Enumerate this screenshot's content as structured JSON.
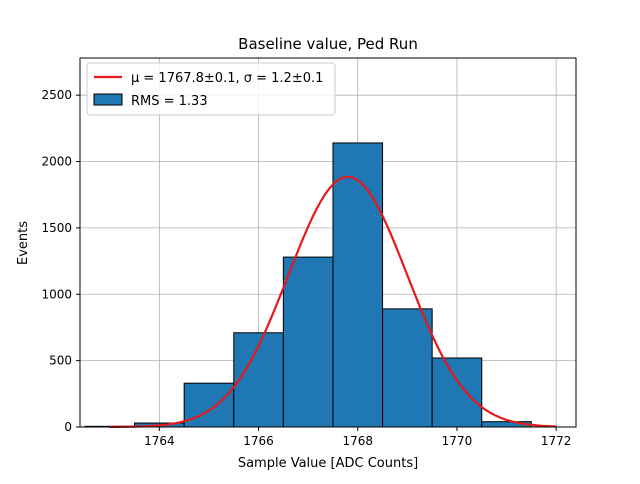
{
  "chart_data": {
    "type": "bar",
    "title": "Baseline value, Ped Run",
    "xlabel": "Sample Value [ADC Counts]",
    "ylabel": "Events",
    "xlim": [
      1762.4,
      1772.4
    ],
    "ylim": [
      0,
      2780
    ],
    "grid": true,
    "legend_position": "top-left",
    "x_ticks": [
      1764,
      1766,
      1768,
      1770,
      1772
    ],
    "x_tick_labels": [
      "1764",
      "1766",
      "1768",
      "1770",
      "1772"
    ],
    "y_ticks": [
      0,
      500,
      1000,
      1500,
      2000,
      2500
    ],
    "y_tick_labels": [
      "0",
      "500",
      "1000",
      "1500",
      "2000",
      "2500"
    ],
    "histogram": {
      "name": "RMS = 1.33",
      "bin_edges": [
        1762.5,
        1763.5,
        1764.5,
        1765.5,
        1766.5,
        1767.5,
        1768.5,
        1769.5,
        1770.5,
        1771.5
      ],
      "counts": [
        5,
        30,
        330,
        710,
        1280,
        2140,
        890,
        520,
        40
      ],
      "color": "#1f77b4"
    },
    "fit": {
      "name_prefix": "μ = 1767.8±0.1, σ = 1.2±0.1",
      "type": "gaussian",
      "mu": 1767.8,
      "sigma": 1.2,
      "amplitude": 1885,
      "x_range": [
        1763,
        1772
      ],
      "color": "#e41a1c"
    },
    "legend": [
      {
        "label": "μ = 1767.8±0.1, σ = 1.2±0.1",
        "style": "line",
        "color": "#e41a1c"
      },
      {
        "label": "RMS = 1.33",
        "style": "patch",
        "color": "#1f77b4"
      }
    ]
  }
}
